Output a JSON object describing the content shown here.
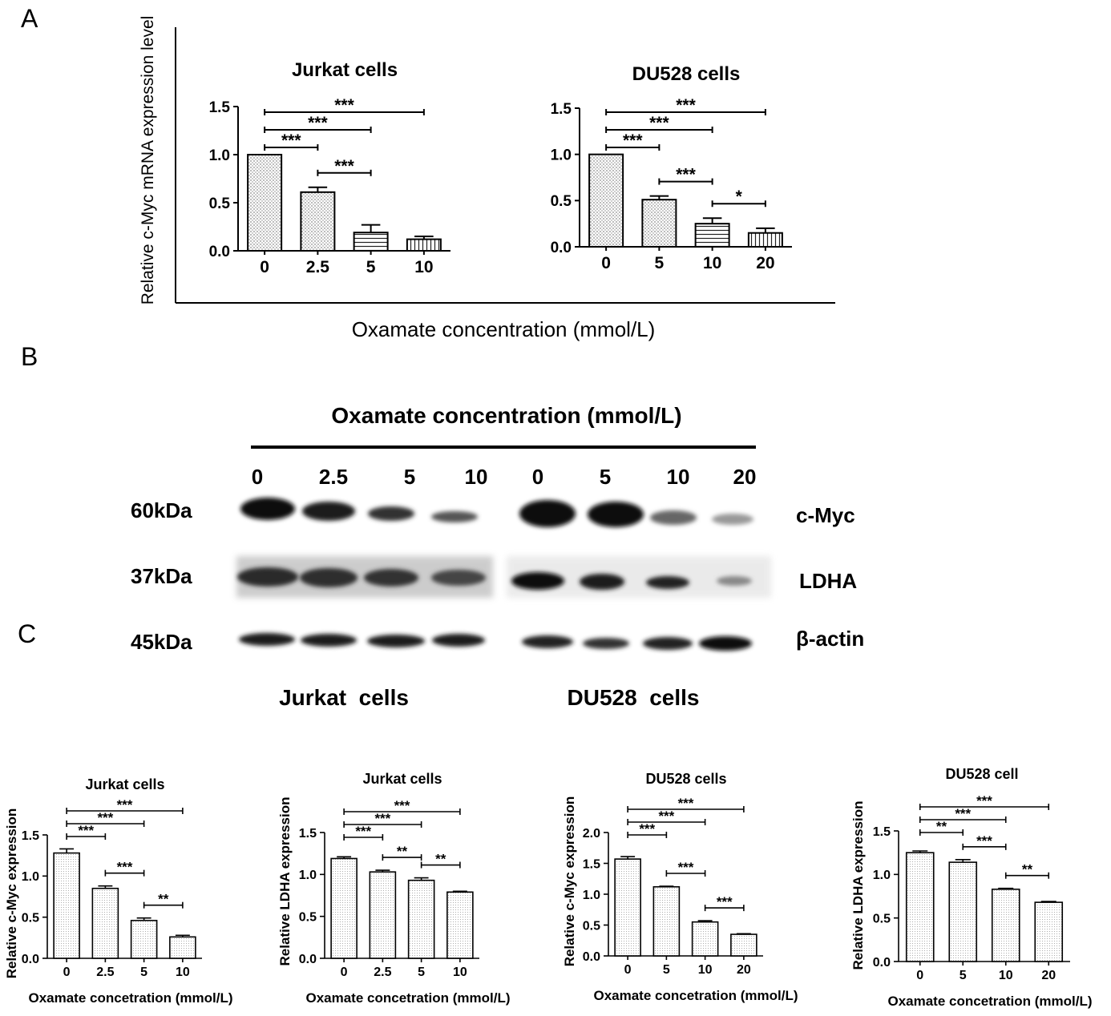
{
  "panel_letters": [
    "A",
    "B",
    "C"
  ],
  "panel_a": {
    "ylabel": "Relative c-Myc mRNA expression level",
    "xlabel": "Oxamate concentration (mmol/L)"
  },
  "panel_b": {
    "header": "Oxamate concentration (mmol/L)",
    "lanes": [
      "0",
      "2.5",
      "5",
      "10",
      "0",
      "5",
      "10",
      "20"
    ],
    "size_markers": [
      "60kDa",
      "37kDa",
      "45kDa"
    ],
    "proteins": [
      "c-Myc",
      "LDHA",
      "β-actin"
    ],
    "group_labels": [
      "Jurkat  cells",
      "DU528  cells"
    ]
  },
  "chart_data": [
    {
      "type": "bar",
      "title": "Jurkat  cells",
      "xlabel": "",
      "ylabel": "",
      "categories": [
        "0",
        "2.5",
        "5",
        "10"
      ],
      "values": [
        1.0,
        0.61,
        0.19,
        0.12
      ],
      "errors": [
        0.0,
        0.05,
        0.08,
        0.03
      ],
      "ylim": [
        0,
        1.5
      ],
      "yticks": [
        "0.0",
        "0.5",
        "1.0",
        "1.5"
      ],
      "patterns": [
        "dots",
        "dots",
        "hlines",
        "vlines"
      ],
      "significance": [
        {
          "from": 0,
          "to": 1,
          "label": "***"
        },
        {
          "from": 0,
          "to": 2,
          "label": "***"
        },
        {
          "from": 0,
          "to": 3,
          "label": "***"
        },
        {
          "from": 1,
          "to": 2,
          "label": "***"
        }
      ]
    },
    {
      "type": "bar",
      "title": "DU528 cells",
      "xlabel": "",
      "ylabel": "",
      "categories": [
        "0",
        "5",
        "10",
        "20"
      ],
      "values": [
        1.0,
        0.51,
        0.25,
        0.15
      ],
      "errors": [
        0.0,
        0.04,
        0.06,
        0.05
      ],
      "ylim": [
        0,
        1.5
      ],
      "yticks": [
        "0.0",
        "0.5",
        "1.0",
        "1.5"
      ],
      "patterns": [
        "dots",
        "dots",
        "hlines",
        "vlines"
      ],
      "significance": [
        {
          "from": 0,
          "to": 1,
          "label": "***"
        },
        {
          "from": 0,
          "to": 2,
          "label": "***"
        },
        {
          "from": 0,
          "to": 3,
          "label": "***"
        },
        {
          "from": 1,
          "to": 2,
          "label": "***"
        },
        {
          "from": 2,
          "to": 3,
          "label": "*"
        }
      ]
    },
    {
      "type": "bar",
      "title": "Jurkat  cells",
      "xlabel": "Oxamate concetration (mmol/L)",
      "ylabel": "Relative c-Myc expression",
      "categories": [
        "0",
        "2.5",
        "5",
        "10"
      ],
      "values": [
        1.28,
        0.85,
        0.46,
        0.26
      ],
      "errors": [
        0.05,
        0.03,
        0.03,
        0.02
      ],
      "ylim": [
        0,
        1.5
      ],
      "yticks": [
        "0.0",
        "0.5",
        "1.0",
        "1.5"
      ],
      "significance": [
        {
          "from": 0,
          "to": 1,
          "label": "***"
        },
        {
          "from": 0,
          "to": 2,
          "label": "***"
        },
        {
          "from": 0,
          "to": 3,
          "label": "***"
        },
        {
          "from": 1,
          "to": 2,
          "label": "***"
        },
        {
          "from": 2,
          "to": 3,
          "label": "**"
        }
      ]
    },
    {
      "type": "bar",
      "title": "Jurkat  cells",
      "xlabel": "Oxamate concetration (mmol/L)",
      "ylabel": "Relative LDHA expression",
      "categories": [
        "0",
        "2.5",
        "5",
        "10"
      ],
      "values": [
        1.19,
        1.03,
        0.93,
        0.79
      ],
      "errors": [
        0.02,
        0.02,
        0.03,
        0.01
      ],
      "ylim": [
        0,
        1.5
      ],
      "yticks": [
        "0.0",
        "0.5",
        "1.0",
        "1.5"
      ],
      "significance": [
        {
          "from": 0,
          "to": 1,
          "label": "***"
        },
        {
          "from": 0,
          "to": 2,
          "label": "***"
        },
        {
          "from": 0,
          "to": 3,
          "label": "***"
        },
        {
          "from": 1,
          "to": 2,
          "label": "**"
        },
        {
          "from": 2,
          "to": 3,
          "label": "**"
        }
      ]
    },
    {
      "type": "bar",
      "title": "DU528 cells",
      "xlabel": "Oxamate concetration (mmol/L)",
      "ylabel": "Relative c-Myc expression",
      "categories": [
        "0",
        "5",
        "10",
        "20"
      ],
      "values": [
        1.57,
        1.12,
        0.55,
        0.35
      ],
      "errors": [
        0.04,
        0.01,
        0.02,
        0.01
      ],
      "ylim": [
        0,
        2.0
      ],
      "yticks": [
        "0.0",
        "0.5",
        "1.0",
        "1.5",
        "2.0"
      ],
      "significance": [
        {
          "from": 0,
          "to": 1,
          "label": "***"
        },
        {
          "from": 0,
          "to": 2,
          "label": "***"
        },
        {
          "from": 0,
          "to": 3,
          "label": "***"
        },
        {
          "from": 1,
          "to": 2,
          "label": "***"
        },
        {
          "from": 2,
          "to": 3,
          "label": "***"
        }
      ]
    },
    {
      "type": "bar",
      "title": "DU528 cell",
      "xlabel": "Oxamate concetration (mmol/L)",
      "ylabel": "Relative LDHA expression",
      "categories": [
        "0",
        "5",
        "10",
        "20"
      ],
      "values": [
        1.25,
        1.14,
        0.83,
        0.68
      ],
      "errors": [
        0.02,
        0.03,
        0.01,
        0.01
      ],
      "ylim": [
        0,
        1.5
      ],
      "yticks": [
        "0.0",
        "0.5",
        "1.0",
        "1.5"
      ],
      "significance": [
        {
          "from": 0,
          "to": 1,
          "label": "**"
        },
        {
          "from": 0,
          "to": 2,
          "label": "***"
        },
        {
          "from": 0,
          "to": 3,
          "label": "***"
        },
        {
          "from": 1,
          "to": 2,
          "label": "***"
        },
        {
          "from": 2,
          "to": 3,
          "label": "**"
        }
      ]
    }
  ]
}
